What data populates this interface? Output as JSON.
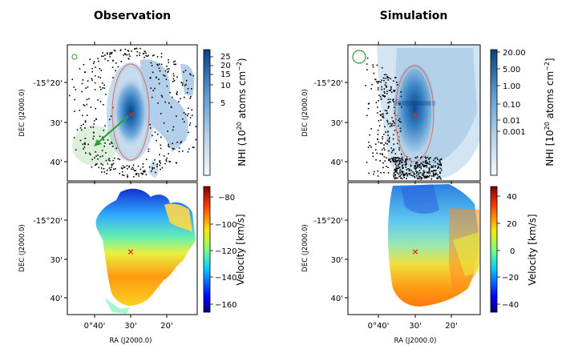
{
  "columns": {
    "left_title": "Observation",
    "right_title": "Simulation"
  },
  "axes": {
    "dec_label": "DEC (J2000.0)",
    "ra_label": "RA (J2000.0)",
    "dec_ticks": [
      "-15°20'",
      "30'",
      "40'"
    ],
    "ra_ticks_left": [
      "0°40'",
      "30'",
      "20'"
    ],
    "ra_ticks_right": [
      "0°40'",
      "30'",
      "20'"
    ]
  },
  "colorbars": {
    "obs_nhi": {
      "label": "NHI (10",
      "label_sup": "20",
      "label_tail": " atoms cm",
      "label_sup2": "−2",
      "label_close": ")",
      "ticks": [
        "25",
        "20",
        "15",
        "10",
        "5"
      ]
    },
    "sim_nhi": {
      "label": "NHI [10",
      "label_sup": "20",
      "label_tail": " atoms cm",
      "label_sup2": "−2",
      "label_close": "]",
      "ticks": [
        "20.00",
        "5.00",
        "1.00",
        "0.10",
        "0.01",
        "0.001"
      ]
    },
    "obs_vel": {
      "label": "Velocity [km/s]",
      "ticks": [
        "−80",
        "−100",
        "−120",
        "−140",
        "−160"
      ]
    },
    "sim_vel": {
      "label": "Velocity [km/s]",
      "ticks": [
        "40",
        "20",
        "0",
        "−20",
        "−40"
      ]
    }
  },
  "colors": {
    "blue_map": "#2a6fb0",
    "center_marker": "#e8232a",
    "arrow": "#2ca02c",
    "ellipse": "#c98080"
  }
}
